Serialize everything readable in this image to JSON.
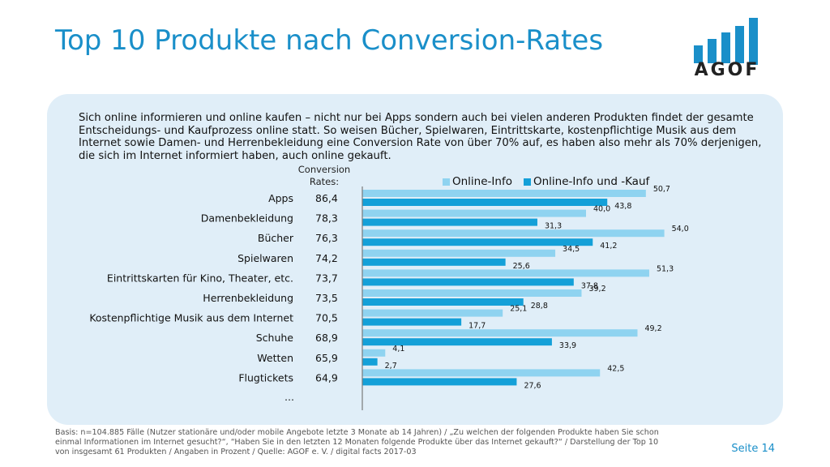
{
  "header": {
    "title": "Top 10 Produkte nach Conversion-Rates",
    "logo_text": "AGOF"
  },
  "intro_text": "Sich online informieren und online kaufen – nicht nur bei Apps sondern auch bei vielen anderen Produkten findet der gesamte Entscheidungs- und Kaufprozess online statt. So weisen Bücher, Spielwaren, Eintrittskarte, kostenpflichtige Musik aus dem Internet sowie Damen- und Herrenbekleidung eine Conversion Rate von über 70% auf, es haben also mehr als 70% derjenigen, die sich im Internet informiert haben, auch online gekauft.",
  "conversion_header": "Conversion Rates:",
  "colors": {
    "accent": "#1a8fc9",
    "series_light": "#8fd3f0",
    "series_dark": "#14a0d8",
    "panel": "#e0eef8"
  },
  "chart_data": {
    "type": "bar",
    "orientation": "horizontal",
    "categories": [
      "Apps",
      "Damenbekleidung",
      "Bücher",
      "Spielwaren",
      "Eintrittskarten für Kino, Theater, etc.",
      "Herrenbekleidung",
      "Kostenpflichtige Musik aus dem Internet",
      "Schuhe",
      "Wetten",
      "Flugtickets"
    ],
    "trailing_label": "…",
    "conversion_rates": [
      "86,4",
      "78,3",
      "76,3",
      "74,2",
      "73,7",
      "73,5",
      "70,5",
      "68,9",
      "65,9",
      "64,9"
    ],
    "series": [
      {
        "name": "Online-Info",
        "values": [
          50.7,
          40.0,
          54.0,
          34.5,
          51.3,
          39.2,
          25.1,
          49.2,
          4.1,
          42.5
        ],
        "labels": [
          "50,7",
          "40,0",
          "54,0",
          "34,5",
          "51,3",
          "39,2",
          "25,1",
          "49,2",
          "4,1",
          "42,5"
        ],
        "color": "#8fd3f0"
      },
      {
        "name": "Online-Info und -Kauf",
        "values": [
          43.8,
          31.3,
          41.2,
          25.6,
          37.8,
          28.8,
          17.7,
          33.9,
          2.7,
          27.6
        ],
        "labels": [
          "43,8",
          "31,3",
          "41,2",
          "25,6",
          "37,8",
          "28,8",
          "17,7",
          "33,9",
          "2,7",
          "27,6"
        ],
        "color": "#14a0d8"
      }
    ],
    "legend_position": "top",
    "grid": false
  },
  "footer": {
    "source_text": "Basis: n=104.885 Fälle (Nutzer stationäre und/oder mobile Angebote letzte 3 Monate ab 14 Jahren) / „Zu welchen der folgenden Produkte haben Sie schon einmal Informationen im Internet gesucht?“, “Haben Sie in den letzten 12 Monaten folgende Produkte über das Internet gekauft?“ / Darstellung der Top 10 von insgesamt 61 Produkten / Angaben in Prozent / Quelle: AGOF e. V. / digital facts 2017-03",
    "page_label": "Seite 14"
  }
}
